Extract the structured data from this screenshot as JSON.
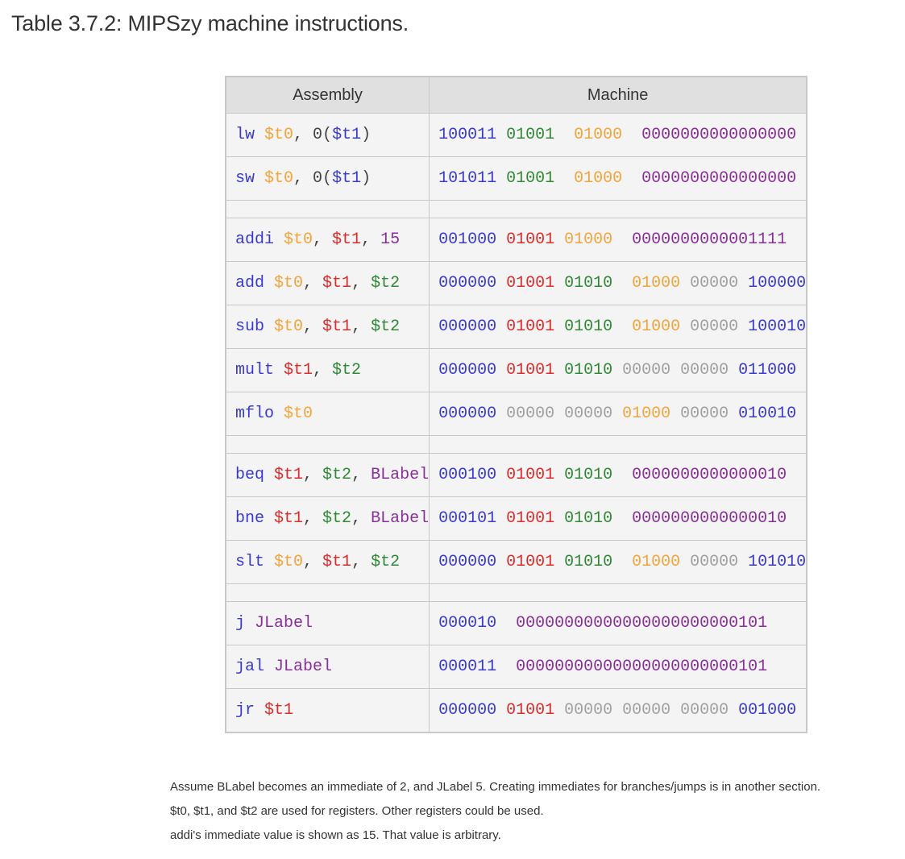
{
  "caption": "Table 3.7.2: MIPSzy machine instructions.",
  "headers": {
    "assembly": "Assembly",
    "machine": "Machine"
  },
  "colors": {
    "blue": "#3a3ad0",
    "orange": "#f4a43a",
    "red": "#dd2c2c",
    "green": "#2f8a35",
    "purple": "#8a2f9a",
    "gray": "#a0a0a0",
    "dark": "#444444"
  },
  "rows": [
    {
      "asm": [
        [
          "lw ",
          "blue"
        ],
        [
          "$t0",
          "orange"
        ],
        [
          ", ",
          "dark"
        ],
        [
          "0(",
          "dark"
        ],
        [
          "$t1",
          "blue"
        ],
        [
          ")",
          "dark"
        ]
      ],
      "machine": [
        [
          "100011 ",
          "blue"
        ],
        [
          "01001 ",
          "green"
        ],
        [
          " 01000 ",
          "orange"
        ],
        [
          " 0000000000000000",
          "purple"
        ]
      ]
    },
    {
      "asm": [
        [
          "sw ",
          "blue"
        ],
        [
          "$t0",
          "orange"
        ],
        [
          ", ",
          "dark"
        ],
        [
          "0(",
          "dark"
        ],
        [
          "$t1",
          "blue"
        ],
        [
          ")",
          "dark"
        ]
      ],
      "machine": [
        [
          "101011 ",
          "blue"
        ],
        [
          "01001 ",
          "green"
        ],
        [
          " 01000 ",
          "orange"
        ],
        [
          " 0000000000000000",
          "purple"
        ]
      ]
    },
    {
      "spacer": true
    },
    {
      "asm": [
        [
          "addi ",
          "blue"
        ],
        [
          "$t0",
          "orange"
        ],
        [
          ", ",
          "dark"
        ],
        [
          "$t1",
          "red"
        ],
        [
          ", ",
          "dark"
        ],
        [
          "15",
          "purple"
        ]
      ],
      "machine": [
        [
          "001000 ",
          "blue"
        ],
        [
          "01001 ",
          "red"
        ],
        [
          "01000 ",
          "orange"
        ],
        [
          " 0000000000001111",
          "purple"
        ]
      ]
    },
    {
      "asm": [
        [
          "add ",
          "blue"
        ],
        [
          "$t0",
          "orange"
        ],
        [
          ", ",
          "dark"
        ],
        [
          "$t1",
          "red"
        ],
        [
          ", ",
          "dark"
        ],
        [
          "$t2",
          "green"
        ]
      ],
      "machine": [
        [
          "000000 ",
          "blue"
        ],
        [
          "01001 ",
          "red"
        ],
        [
          "01010 ",
          "green"
        ],
        [
          " 01000 ",
          "orange"
        ],
        [
          "00000 ",
          "gray"
        ],
        [
          "100000",
          "blue"
        ]
      ]
    },
    {
      "asm": [
        [
          "sub ",
          "blue"
        ],
        [
          "$t0",
          "orange"
        ],
        [
          ", ",
          "dark"
        ],
        [
          "$t1",
          "red"
        ],
        [
          ", ",
          "dark"
        ],
        [
          "$t2",
          "green"
        ]
      ],
      "machine": [
        [
          "000000 ",
          "blue"
        ],
        [
          "01001 ",
          "red"
        ],
        [
          "01010 ",
          "green"
        ],
        [
          " 01000 ",
          "orange"
        ],
        [
          "00000 ",
          "gray"
        ],
        [
          "100010",
          "blue"
        ]
      ]
    },
    {
      "asm": [
        [
          "mult ",
          "blue"
        ],
        [
          "$t1",
          "red"
        ],
        [
          ", ",
          "dark"
        ],
        [
          "$t2",
          "green"
        ]
      ],
      "machine": [
        [
          "000000 ",
          "blue"
        ],
        [
          "01001 ",
          "red"
        ],
        [
          "01010 ",
          "green"
        ],
        [
          "00000 00000 ",
          "gray"
        ],
        [
          "011000",
          "blue"
        ]
      ]
    },
    {
      "asm": [
        [
          "mflo ",
          "blue"
        ],
        [
          "$t0",
          "orange"
        ]
      ],
      "machine": [
        [
          "000000 ",
          "blue"
        ],
        [
          "00000 00000 ",
          "gray"
        ],
        [
          "01000 ",
          "orange"
        ],
        [
          "00000 ",
          "gray"
        ],
        [
          "010010",
          "blue"
        ]
      ]
    },
    {
      "spacer": true
    },
    {
      "asm": [
        [
          "beq ",
          "blue"
        ],
        [
          "$t1",
          "red"
        ],
        [
          ", ",
          "dark"
        ],
        [
          "$t2",
          "green"
        ],
        [
          ", ",
          "dark"
        ],
        [
          "BLabel",
          "purple"
        ]
      ],
      "machine": [
        [
          "000100 ",
          "blue"
        ],
        [
          "01001 ",
          "red"
        ],
        [
          "01010 ",
          "green"
        ],
        [
          " 0000000000000010",
          "purple"
        ]
      ]
    },
    {
      "asm": [
        [
          "bne ",
          "blue"
        ],
        [
          "$t1",
          "red"
        ],
        [
          ", ",
          "dark"
        ],
        [
          "$t2",
          "green"
        ],
        [
          ", ",
          "dark"
        ],
        [
          "BLabel",
          "purple"
        ]
      ],
      "machine": [
        [
          "000101 ",
          "blue"
        ],
        [
          "01001 ",
          "red"
        ],
        [
          "01010 ",
          "green"
        ],
        [
          " 0000000000000010",
          "purple"
        ]
      ]
    },
    {
      "asm": [
        [
          "slt ",
          "blue"
        ],
        [
          "$t0",
          "orange"
        ],
        [
          ", ",
          "dark"
        ],
        [
          "$t1",
          "red"
        ],
        [
          ", ",
          "dark"
        ],
        [
          "$t2",
          "green"
        ]
      ],
      "machine": [
        [
          "000000 ",
          "blue"
        ],
        [
          "01001 ",
          "red"
        ],
        [
          "01010 ",
          "green"
        ],
        [
          " 01000 ",
          "orange"
        ],
        [
          "00000 ",
          "gray"
        ],
        [
          "101010",
          "blue"
        ]
      ]
    },
    {
      "spacer": true
    },
    {
      "asm": [
        [
          "j ",
          "blue"
        ],
        [
          "JLabel",
          "purple"
        ]
      ],
      "machine": [
        [
          "000010 ",
          "blue"
        ],
        [
          " 00000000000000000000000101",
          "purple"
        ]
      ]
    },
    {
      "asm": [
        [
          "jal ",
          "blue"
        ],
        [
          "JLabel",
          "purple"
        ]
      ],
      "machine": [
        [
          "000011 ",
          "blue"
        ],
        [
          " 00000000000000000000000101",
          "purple"
        ]
      ]
    },
    {
      "asm": [
        [
          "jr ",
          "blue"
        ],
        [
          "$t1",
          "red"
        ]
      ],
      "machine": [
        [
          "000000 ",
          "blue"
        ],
        [
          "01001 ",
          "red"
        ],
        [
          "00000 00000 00000 ",
          "gray"
        ],
        [
          "001000",
          "blue"
        ]
      ]
    }
  ],
  "notes": [
    "Assume BLabel becomes an immediate of 2, and JLabel 5. Creating immediates for branches/jumps is in another section.",
    "$t0, $t1, and $t2 are used for registers. Other registers could be used.",
    "addi's immediate value is shown as 15. That value is arbitrary."
  ]
}
